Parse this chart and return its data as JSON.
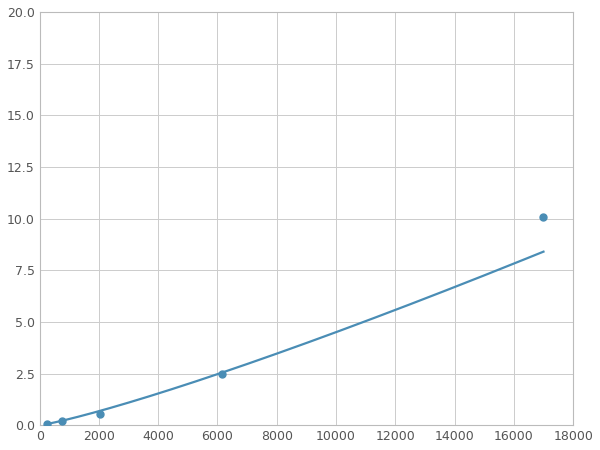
{
  "x_points": [
    256,
    768,
    2048,
    6144,
    17000
  ],
  "y_points": [
    0.08,
    0.18,
    0.55,
    2.5,
    10.1
  ],
  "line_color": "#4a8db5",
  "marker_color": "#4a8db5",
  "marker_size": 5,
  "line_width": 1.6,
  "xlim": [
    0,
    18000
  ],
  "ylim": [
    0,
    20
  ],
  "xticks": [
    0,
    2000,
    4000,
    6000,
    8000,
    10000,
    12000,
    14000,
    16000,
    18000
  ],
  "yticks": [
    0.0,
    2.5,
    5.0,
    7.5,
    10.0,
    12.5,
    15.0,
    17.5,
    20.0
  ],
  "grid_color": "#cccccc",
  "bg_color": "#ffffff",
  "spine_color": "#bbbbbb"
}
